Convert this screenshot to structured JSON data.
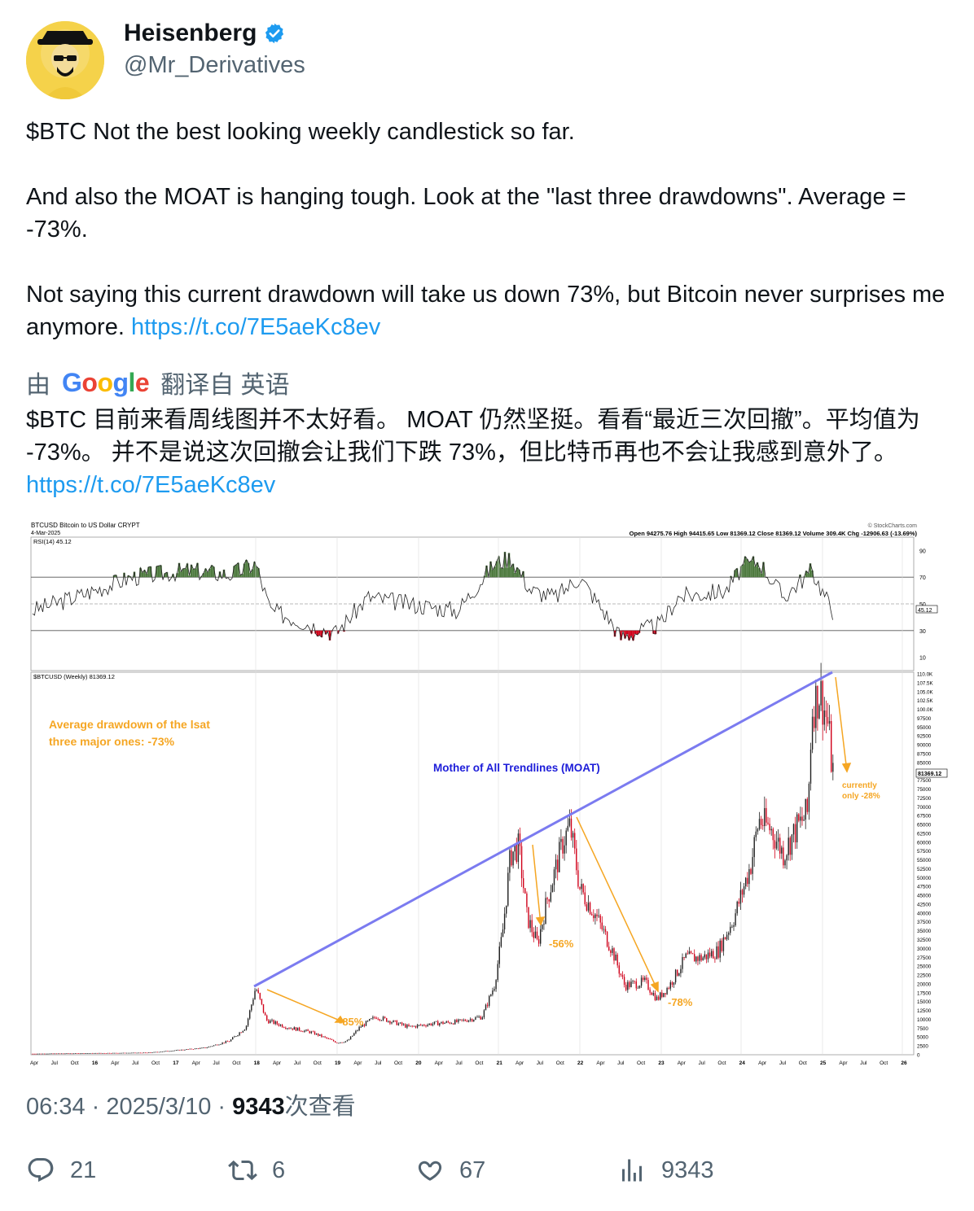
{
  "user": {
    "name": "Heisenberg",
    "handle": "@Mr_Derivatives"
  },
  "tweet": {
    "line1": "$BTC Not the best looking weekly candlestick so far.",
    "line2": "And also the MOAT is hanging tough. Look at the \"last three drawdowns\". Average = -73%.",
    "line3": "Not saying this current drawdown will take us down 73%, but Bitcoin never surprises me anymore.",
    "link": "https://t.co/7E5aeKc8ev"
  },
  "translation": {
    "prefix": "由",
    "suffix": "翻译自 英语",
    "text": "$BTC 目前来看周线图并不太好看。 MOAT 仍然坚挺。看看“最近三次回撤”。平均值为 -73%。 并不是说这次回撤会让我们下跌 73%，但比特币再也不会让我感到意外了。",
    "link": "https://t.co/7E5aeKc8ev"
  },
  "chart": {
    "header_left": "BTCUSD Bitcoin to US Dollar  CRYPT",
    "header_date": "4-Mar-2025",
    "header_right": "© StockCharts.com",
    "ohlc": "Open 94275.76  High 94415.65  Low 81369.12  Close 81369.12  Volume 309.4K  Chg -12906.63 (-13.69%)",
    "rsi_label": "RSI(14) 45.12",
    "rsi_value_tag": "45.12",
    "rsi_ticks": [
      "90",
      "70",
      "50",
      "30",
      "10"
    ],
    "price_label": "$BTCUSD (Weekly) 81369.12",
    "price_tag": "81369.12",
    "price_ticks": [
      "110.0K",
      "107.5K",
      "105.0K",
      "102.5K",
      "100.0K",
      "97500",
      "95000",
      "92500",
      "90000",
      "87500",
      "85000",
      "80000",
      "77500",
      "75000",
      "72500",
      "70000",
      "67500",
      "65000",
      "62500",
      "60000",
      "57500",
      "55000",
      "52500",
      "50000",
      "47500",
      "45000",
      "42500",
      "40000",
      "37500",
      "35000",
      "32500",
      "30000",
      "27500",
      "25000",
      "22500",
      "20000",
      "17500",
      "15000",
      "12500",
      "10000",
      "7500",
      "5000",
      "2500",
      "0"
    ],
    "annotation_avg_line1": "Average drawdown of the lsat",
    "annotation_avg_line2": "three major ones: -73%",
    "annotation_moat": "Mother of All Trendlines (MOAT)",
    "dd1": "-85%",
    "dd2": "-56%",
    "dd3": "-78%",
    "current_line1": "currently",
    "current_line2": "only -28%",
    "x_labels": [
      "Apr",
      "Jul",
      "Oct",
      "16",
      "Apr",
      "Jul",
      "Oct",
      "17",
      "Apr",
      "Jul",
      "Oct",
      "18",
      "Apr",
      "Jul",
      "Oct",
      "19",
      "Apr",
      "Jul",
      "Oct",
      "20",
      "Apr",
      "Jul",
      "Oct",
      "21",
      "Apr",
      "Jul",
      "Oct",
      "22",
      "Apr",
      "Jul",
      "Oct",
      "23",
      "Apr",
      "Jul",
      "Oct",
      "24",
      "Apr",
      "Jul",
      "Oct",
      "25",
      "Apr",
      "Jul",
      "Oct",
      "26"
    ],
    "colors": {
      "moat": "#7b7bf0",
      "arrow": "#f5a623",
      "up": "#222222",
      "down": "#d0021b",
      "rsi_fill": "#4e7a3f"
    }
  },
  "meta": {
    "time": "06:34",
    "date": "2025/3/10",
    "views": "9343",
    "views_suffix": "次查看"
  },
  "actions": {
    "replies": "21",
    "retweets": "6",
    "likes": "67",
    "views": "9343"
  }
}
